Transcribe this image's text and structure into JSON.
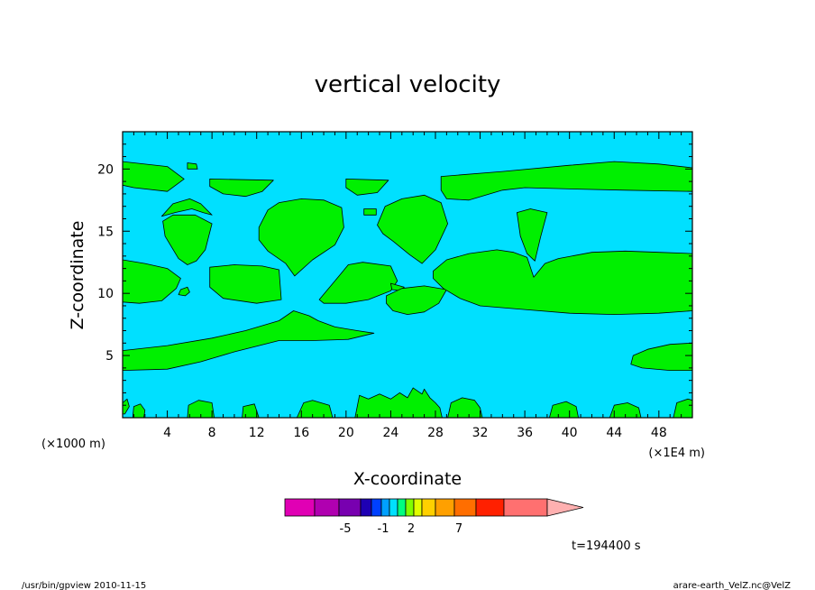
{
  "chart_data": {
    "type": "heatmap",
    "title": "vertical velocity",
    "xlabel": "X-coordinate",
    "ylabel": "Z-coordinate",
    "x_unit_left": "(×1000 m)",
    "x_unit_right": "(×1E4 m)",
    "xlim": [
      0,
      51
    ],
    "ylim": [
      0,
      23
    ],
    "x_ticks": [
      4,
      8,
      12,
      16,
      20,
      24,
      28,
      32,
      36,
      40,
      44,
      48
    ],
    "y_ticks": [
      5,
      10,
      15,
      20
    ],
    "colorbar_labels": [
      "-5",
      "-1",
      "2",
      "7"
    ],
    "colorbar_colors": [
      "#e000b4",
      "#b000b0",
      "#7800b0",
      "#1e00b4",
      "#0040ff",
      "#00a0ff",
      "#00e0ff",
      "#00ff80",
      "#80ff00",
      "#e0ff00",
      "#ffd000",
      "#ffa000",
      "#ff6e00",
      "#ff2000",
      "#ff7070",
      "#ffb0b0"
    ],
    "background_color": "#00e0ff",
    "region_color": "#00f000",
    "time_label": "t=194400 s",
    "regions": [
      {
        "name": "upper-left band",
        "points": [
          [
            0,
            20.6
          ],
          [
            4,
            20.2
          ],
          [
            5.5,
            19.2
          ],
          [
            4,
            18.2
          ],
          [
            1,
            18.5
          ],
          [
            0,
            18.7
          ]
        ]
      },
      {
        "name": "upper-left blob",
        "points": [
          [
            5.8,
            20.5
          ],
          [
            6.6,
            20.4
          ],
          [
            6.7,
            20
          ],
          [
            5.8,
            20
          ]
        ]
      },
      {
        "name": "upper band 1",
        "points": [
          [
            7.8,
            19.2
          ],
          [
            13.5,
            19.1
          ],
          [
            12.5,
            18.2
          ],
          [
            11,
            17.8
          ],
          [
            9,
            18.0
          ],
          [
            7.8,
            18.6
          ]
        ]
      },
      {
        "name": "upper band 2",
        "points": [
          [
            20,
            19.2
          ],
          [
            23.8,
            19.1
          ],
          [
            22.8,
            18.1
          ],
          [
            21,
            17.9
          ],
          [
            20,
            18.5
          ]
        ]
      },
      {
        "name": "arch 1",
        "points": [
          [
            3.5,
            16.2
          ],
          [
            4.5,
            17.2
          ],
          [
            6,
            17.6
          ],
          [
            7,
            17.2
          ],
          [
            8,
            16.3
          ],
          [
            7.2,
            16.5
          ],
          [
            6.2,
            16.8
          ],
          [
            4.7,
            16.5
          ]
        ]
      },
      {
        "name": "upper-right band",
        "points": [
          [
            28.5,
            19.4
          ],
          [
            34,
            19.8
          ],
          [
            40,
            20.3
          ],
          [
            44,
            20.6
          ],
          [
            48,
            20.4
          ],
          [
            51,
            20.1
          ],
          [
            51,
            18.2
          ],
          [
            45,
            18.3
          ],
          [
            40,
            18.4
          ],
          [
            36,
            18.5
          ],
          [
            34,
            18.3
          ],
          [
            31,
            17.5
          ],
          [
            29,
            17.6
          ],
          [
            28.5,
            18.3
          ]
        ]
      },
      {
        "name": "left drop",
        "points": [
          [
            3.6,
            15.8
          ],
          [
            4.5,
            16.3
          ],
          [
            6.5,
            16.3
          ],
          [
            8,
            15.6
          ],
          [
            7.4,
            13.5
          ],
          [
            6.6,
            12.6
          ],
          [
            5.8,
            12.3
          ],
          [
            5,
            12.8
          ],
          [
            3.8,
            14.6
          ]
        ]
      },
      {
        "name": "central blob",
        "points": [
          [
            12.2,
            15.3
          ],
          [
            13,
            16.7
          ],
          [
            14,
            17.3
          ],
          [
            16,
            17.6
          ],
          [
            18,
            17.5
          ],
          [
            19.6,
            16.9
          ],
          [
            19.8,
            15.3
          ],
          [
            19,
            13.9
          ],
          [
            17,
            12.7
          ],
          [
            15.4,
            11.4
          ],
          [
            14.6,
            12.4
          ],
          [
            13,
            13.4
          ],
          [
            12.2,
            14.3
          ]
        ]
      },
      {
        "name": "small square",
        "points": [
          [
            21.6,
            16.8
          ],
          [
            22.7,
            16.8
          ],
          [
            22.7,
            16.3
          ],
          [
            21.6,
            16.3
          ]
        ]
      },
      {
        "name": "right blob",
        "points": [
          [
            22.8,
            15.5
          ],
          [
            23.5,
            17
          ],
          [
            25,
            17.6
          ],
          [
            27,
            17.9
          ],
          [
            28.5,
            17.3
          ],
          [
            29.1,
            15.6
          ],
          [
            28,
            13.5
          ],
          [
            26.8,
            12.4
          ],
          [
            25.7,
            13.1
          ],
          [
            24.2,
            14.2
          ],
          [
            23.3,
            14.8
          ]
        ]
      },
      {
        "name": "narrow drop",
        "points": [
          [
            35.3,
            16.5
          ],
          [
            36.5,
            16.8
          ],
          [
            38,
            16.5
          ],
          [
            37.4,
            14.5
          ],
          [
            36.9,
            12.6
          ],
          [
            36.2,
            13.2
          ],
          [
            35.6,
            14.6
          ]
        ]
      },
      {
        "name": "far-left band",
        "points": [
          [
            0,
            12.7
          ],
          [
            2,
            12.4
          ],
          [
            4,
            12.0
          ],
          [
            5.2,
            11.2
          ],
          [
            4.8,
            10.4
          ],
          [
            3.5,
            9.4
          ],
          [
            1.5,
            9.2
          ],
          [
            0,
            9.3
          ]
        ]
      },
      {
        "name": "small circle",
        "points": [
          [
            5.2,
            10.3
          ],
          [
            5.8,
            10.5
          ],
          [
            6,
            10.1
          ],
          [
            5.6,
            9.8
          ],
          [
            5,
            9.9
          ]
        ]
      },
      {
        "name": "mid-left block",
        "points": [
          [
            7.8,
            12.1
          ],
          [
            10,
            12.3
          ],
          [
            12.5,
            12.2
          ],
          [
            14,
            11.9
          ],
          [
            14.2,
            9.5
          ],
          [
            12,
            9.2
          ],
          [
            9,
            9.6
          ],
          [
            7.8,
            10.5
          ]
        ]
      },
      {
        "name": "mid-center block",
        "points": [
          [
            17.6,
            9.5
          ],
          [
            19,
            11
          ],
          [
            20.2,
            12.3
          ],
          [
            21.5,
            12.5
          ],
          [
            24,
            12.2
          ],
          [
            24.6,
            11
          ],
          [
            24,
            10.2
          ],
          [
            22,
            9.5
          ],
          [
            20,
            9.2
          ],
          [
            18,
            9.2
          ]
        ]
      },
      {
        "name": "small tip",
        "points": [
          [
            24,
            10.8
          ],
          [
            25.2,
            10.5
          ],
          [
            24.9,
            10.2
          ],
          [
            24.1,
            10.3
          ]
        ]
      },
      {
        "name": "mid tongue",
        "points": [
          [
            23.6,
            9.8
          ],
          [
            25,
            10.4
          ],
          [
            27,
            10.6
          ],
          [
            29,
            10.3
          ],
          [
            28.3,
            9.2
          ],
          [
            27,
            8.5
          ],
          [
            25.5,
            8.3
          ],
          [
            24.2,
            8.6
          ],
          [
            23.6,
            9.2
          ]
        ]
      },
      {
        "name": "right large band",
        "points": [
          [
            27.8,
            11.8
          ],
          [
            29,
            12.7
          ],
          [
            31,
            13.2
          ],
          [
            33.5,
            13.5
          ],
          [
            35,
            13.3
          ],
          [
            36.2,
            12.9
          ],
          [
            36.8,
            11.3
          ],
          [
            37.8,
            12.4
          ],
          [
            39,
            12.8
          ],
          [
            42,
            13.3
          ],
          [
            45,
            13.4
          ],
          [
            48,
            13.3
          ],
          [
            51,
            13.2
          ],
          [
            51,
            8.6
          ],
          [
            48,
            8.4
          ],
          [
            44,
            8.3
          ],
          [
            40,
            8.4
          ],
          [
            36,
            8.7
          ],
          [
            32,
            9
          ],
          [
            30.2,
            9.6
          ],
          [
            28.7,
            10.4
          ],
          [
            27.8,
            11.2
          ]
        ]
      },
      {
        "name": "left-center band",
        "points": [
          [
            0,
            5.4
          ],
          [
            4,
            5.8
          ],
          [
            8,
            6.4
          ],
          [
            11,
            7.0
          ],
          [
            14,
            7.8
          ],
          [
            15.3,
            8.6
          ],
          [
            16.7,
            8.2
          ],
          [
            17.5,
            7.8
          ],
          [
            19,
            7.3
          ],
          [
            21,
            7.0
          ],
          [
            22.5,
            6.8
          ],
          [
            20.2,
            6.3
          ],
          [
            17,
            6.2
          ],
          [
            14,
            6.2
          ],
          [
            10,
            5.3
          ],
          [
            7,
            4.5
          ],
          [
            4,
            3.9
          ],
          [
            0,
            3.8
          ]
        ]
      },
      {
        "name": "lower-right band",
        "points": [
          [
            45.7,
            5.0
          ],
          [
            47,
            5.5
          ],
          [
            49,
            5.9
          ],
          [
            51,
            6.0
          ],
          [
            51,
            3.8
          ],
          [
            49,
            3.8
          ],
          [
            46.5,
            4.0
          ],
          [
            45.5,
            4.3
          ]
        ]
      },
      {
        "name": "bottom blob 1",
        "points": [
          [
            0,
            1.2
          ],
          [
            0.4,
            1.5
          ],
          [
            0.6,
            0.9
          ],
          [
            0.2,
            0.3
          ],
          [
            0,
            0.3
          ]
        ]
      },
      {
        "name": "bottom blob 2",
        "points": [
          [
            0.9,
            0
          ],
          [
            1.0,
            0.9
          ],
          [
            1.6,
            1.1
          ],
          [
            2,
            0.6
          ],
          [
            1.9,
            0
          ]
        ]
      },
      {
        "name": "bottom blob 3",
        "points": [
          [
            5.8,
            0
          ],
          [
            5.9,
            1
          ],
          [
            6.8,
            1.4
          ],
          [
            8,
            1.2
          ],
          [
            8.2,
            0
          ]
        ]
      },
      {
        "name": "bottom blob 4",
        "points": [
          [
            10.7,
            0
          ],
          [
            10.8,
            0.9
          ],
          [
            11.8,
            1.1
          ],
          [
            12.2,
            0
          ]
        ]
      },
      {
        "name": "bottom blob 5",
        "points": [
          [
            15.6,
            0
          ],
          [
            16.2,
            1.2
          ],
          [
            17,
            1.4
          ],
          [
            18.5,
            1.0
          ],
          [
            18.8,
            0
          ]
        ]
      },
      {
        "name": "bottom blob 6",
        "points": [
          [
            20.8,
            0
          ],
          [
            21.2,
            1.8
          ],
          [
            22,
            1.5
          ],
          [
            23,
            1.9
          ],
          [
            24,
            1.5
          ],
          [
            24.8,
            2.0
          ],
          [
            25.5,
            1.6
          ],
          [
            26,
            2.4
          ],
          [
            26.8,
            1.9
          ],
          [
            27,
            2.3
          ],
          [
            27.5,
            1.6
          ],
          [
            28,
            1.2
          ],
          [
            28.4,
            0.8
          ],
          [
            28.6,
            0
          ]
        ]
      },
      {
        "name": "bottom blob 7",
        "points": [
          [
            29.1,
            0
          ],
          [
            29.4,
            1.2
          ],
          [
            30.4,
            1.6
          ],
          [
            31.5,
            1.4
          ],
          [
            32,
            0.8
          ],
          [
            32.2,
            0
          ]
        ]
      },
      {
        "name": "bottom blob 8",
        "points": [
          [
            38.2,
            0
          ],
          [
            38.5,
            1.0
          ],
          [
            39.7,
            1.3
          ],
          [
            40.6,
            0.9
          ],
          [
            40.8,
            0
          ]
        ]
      },
      {
        "name": "bottom blob 9",
        "points": [
          [
            43.6,
            0
          ],
          [
            44,
            1.0
          ],
          [
            45.2,
            1.2
          ],
          [
            46.2,
            0.8
          ],
          [
            46.4,
            0
          ]
        ]
      },
      {
        "name": "bottom blob 10",
        "points": [
          [
            49.3,
            0
          ],
          [
            49.6,
            1.2
          ],
          [
            50.6,
            1.5
          ],
          [
            51,
            1.4
          ],
          [
            51,
            0
          ]
        ]
      }
    ]
  },
  "footer": {
    "left": "/usr/bin/gpview   2010-11-15",
    "right": "arare-earth_VelZ.nc@VelZ"
  }
}
